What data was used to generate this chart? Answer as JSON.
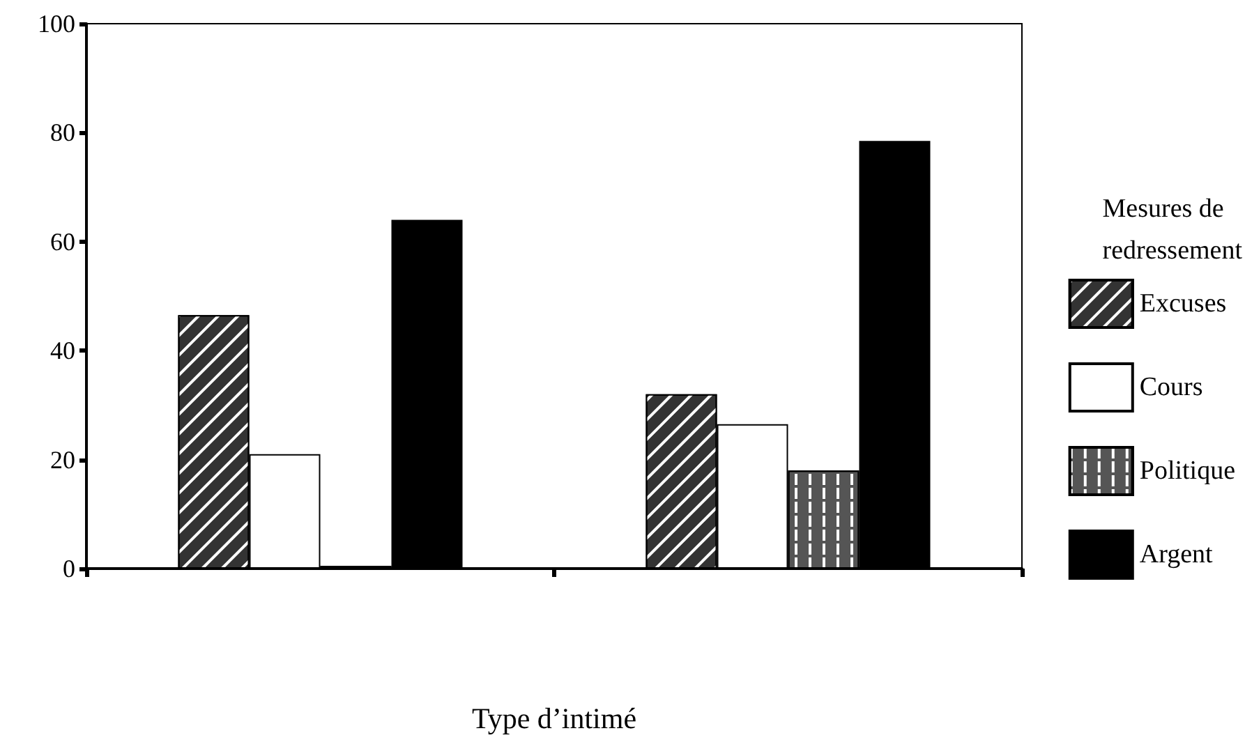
{
  "chart_data": {
    "type": "bar",
    "xlabel": "Type d’intimé",
    "legend_title": "Mesures de redressement",
    "categories": [
      null,
      null
    ],
    "series": [
      {
        "name": "Excuses",
        "color": "#333333",
        "values": [
          46.5,
          32
        ]
      },
      {
        "name": "Cours",
        "color": "#ffffff",
        "values": [
          21,
          26.5
        ]
      },
      {
        "name": "Politique",
        "color": "#555555",
        "values": [
          0,
          18
        ]
      },
      {
        "name": "Argent",
        "color": "#000000",
        "values": [
          64,
          78.5
        ]
      }
    ],
    "ylim": [
      0,
      100
    ],
    "yticks": [
      0,
      20,
      40,
      60,
      80,
      100
    ],
    "grid": false,
    "legend": "right"
  }
}
